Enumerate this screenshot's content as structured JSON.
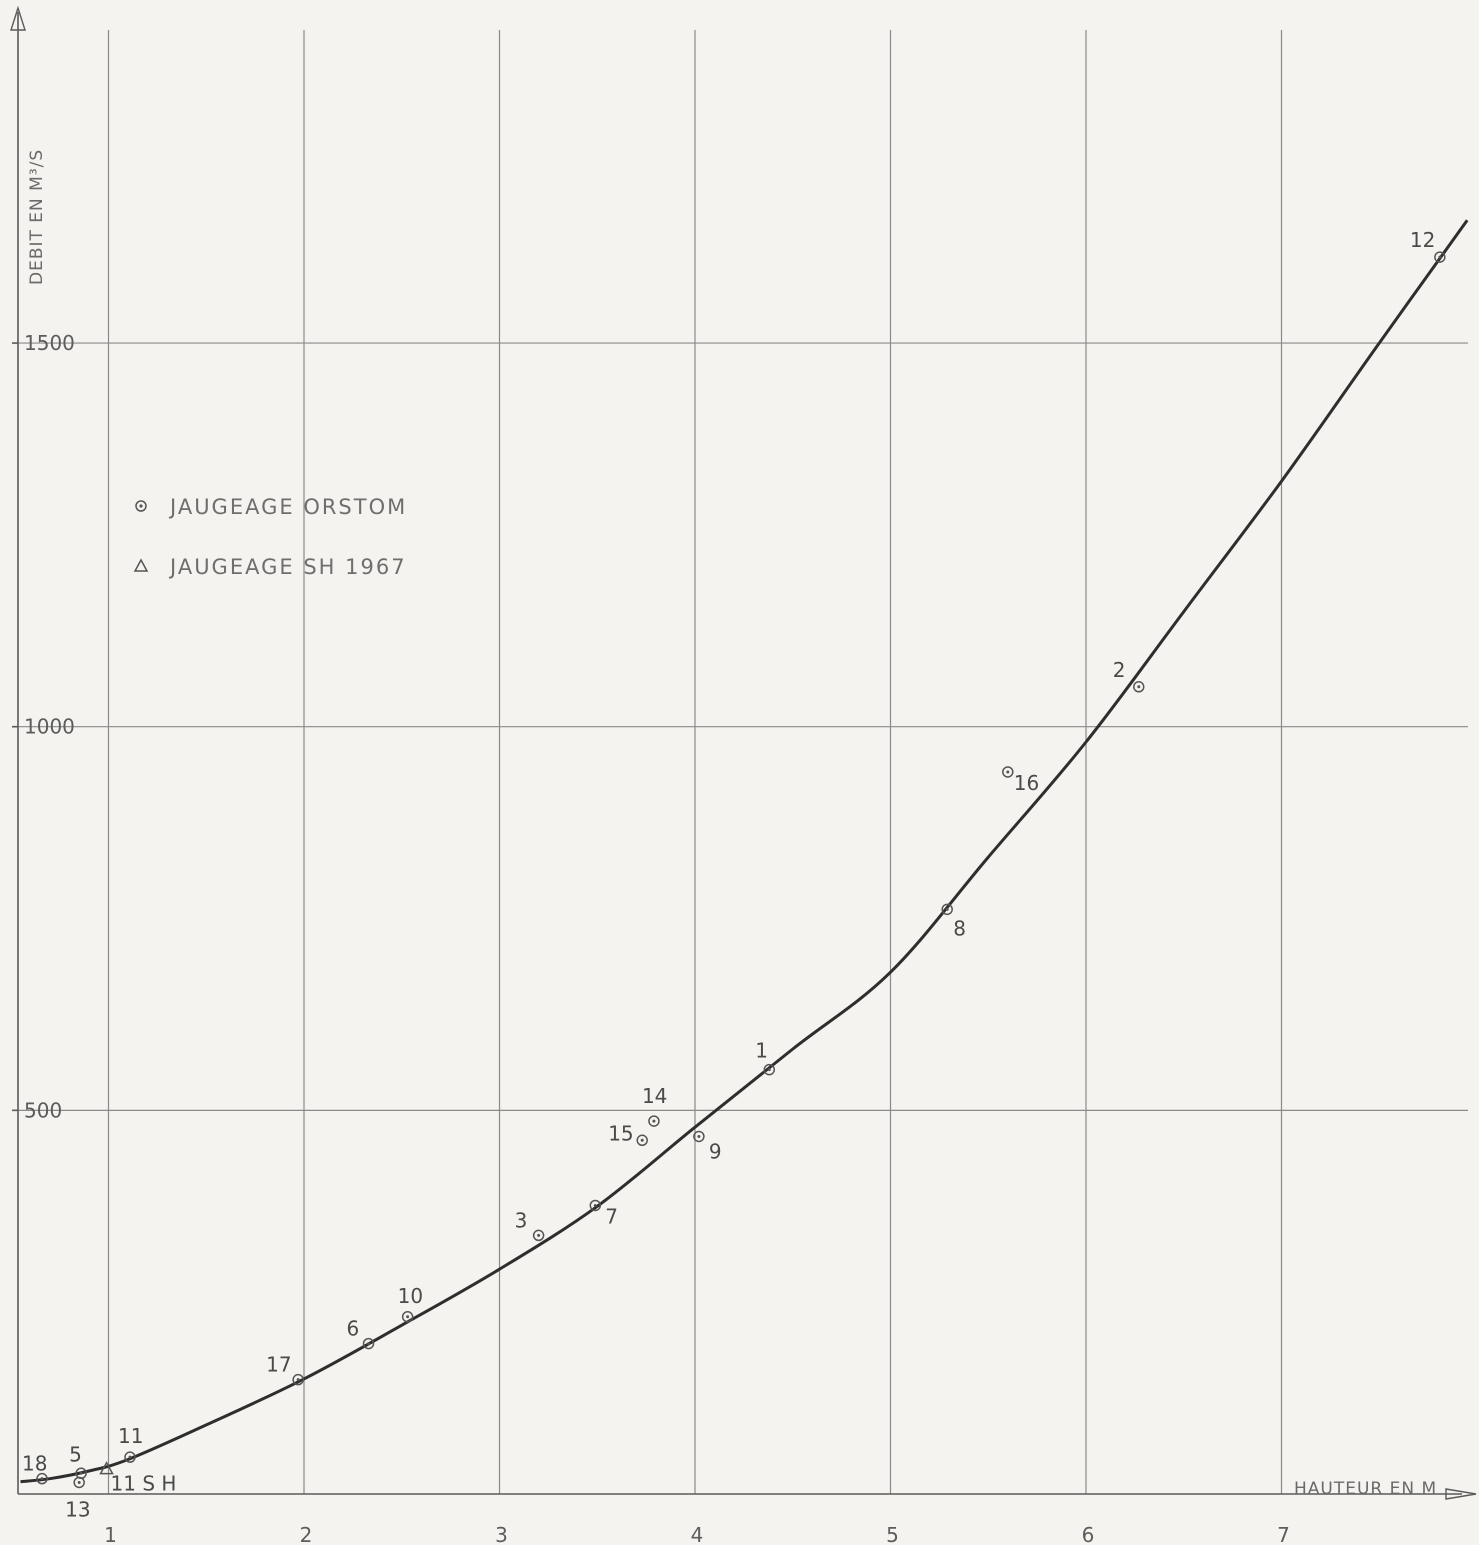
{
  "chart_data": {
    "type": "scatter",
    "xlabel": "HAUTEUR EN M",
    "ylabel": "DEBIT EN M³/S",
    "xlim": [
      0.55,
      7.95
    ],
    "ylim": [
      0,
      1970
    ],
    "x_ticks": [
      1,
      2,
      3,
      4,
      5,
      6,
      7
    ],
    "y_ticks": [
      500,
      1000,
      1500
    ],
    "x_tick_labels": [
      "1",
      "2",
      "3",
      "4",
      "5",
      "6",
      "7"
    ],
    "y_tick_labels": [
      "500",
      "1000",
      "1500"
    ],
    "grid": true,
    "legend_position": "top-left",
    "legend": [
      {
        "symbol": "circle-dot",
        "label": "JAUGEAGE ORSTOM"
      },
      {
        "symbol": "triangle",
        "label": "JAUGEAGE SH 1967"
      }
    ],
    "series": [
      {
        "name": "JAUGEAGE ORSTOM",
        "marker": "circle-dot",
        "points": [
          {
            "label": "18",
            "x": 0.66,
            "y": 20
          },
          {
            "label": "5",
            "x": 0.86,
            "y": 27
          },
          {
            "label": "13",
            "x": 0.85,
            "y": 15
          },
          {
            "label": "11",
            "x": 1.11,
            "y": 48
          },
          {
            "label": "17",
            "x": 1.97,
            "y": 149
          },
          {
            "label": "6",
            "x": 2.33,
            "y": 196
          },
          {
            "label": "10",
            "x": 2.53,
            "y": 231
          },
          {
            "label": "3",
            "x": 3.2,
            "y": 337
          },
          {
            "label": "7",
            "x": 3.49,
            "y": 376
          },
          {
            "label": "15",
            "x": 3.73,
            "y": 461
          },
          {
            "label": "14",
            "x": 3.79,
            "y": 486
          },
          {
            "label": "9",
            "x": 4.02,
            "y": 466
          },
          {
            "label": "1",
            "x": 4.38,
            "y": 553
          },
          {
            "label": "8",
            "x": 5.29,
            "y": 762
          },
          {
            "label": "16",
            "x": 5.6,
            "y": 941
          },
          {
            "label": "2",
            "x": 6.27,
            "y": 1052
          },
          {
            "label": "12",
            "x": 7.81,
            "y": 1612
          }
        ]
      },
      {
        "name": "JAUGEAGE SH 1967",
        "marker": "triangle",
        "points": [
          {
            "label": "11 S H",
            "x": 0.99,
            "y": 33
          }
        ]
      }
    ],
    "curve": {
      "name": "rating curve",
      "x": [
        0.55,
        0.7,
        0.9,
        1.1,
        1.5,
        2.0,
        2.5,
        3.0,
        3.5,
        4.0,
        4.5,
        5.0,
        5.5,
        6.0,
        6.5,
        7.0,
        7.5,
        7.95
      ],
      "y": [
        16,
        20,
        30,
        45,
        90,
        150,
        220,
        293,
        375,
        478,
        580,
        680,
        830,
        980,
        1150,
        1320,
        1500,
        1660
      ]
    }
  }
}
